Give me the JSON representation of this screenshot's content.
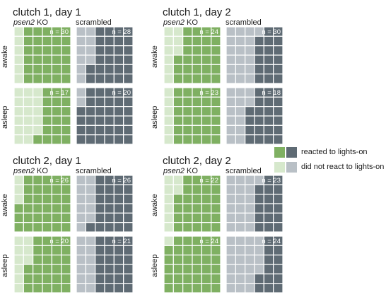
{
  "chart_data": {
    "type": "waffle",
    "colors": {
      "psen2_reacted": "#7fb062",
      "psen2_not_reacted": "#d6e8cc",
      "scrambled_reacted": "#5f6b74",
      "scrambled_not_reacted": "#b9c0c6",
      "grid_line": "#ffffff"
    },
    "grid": {
      "rows": 6,
      "cols": 6
    },
    "legend": [
      {
        "label": "reacted to lights-on",
        "colors": [
          "#7fb062",
          "#5f6b74"
        ]
      },
      {
        "label": "did not react to lights-on",
        "colors": [
          "#d6e8cc",
          "#b9c0c6"
        ]
      }
    ],
    "panels": [
      {
        "title": "clutch 1, day 1",
        "genotype_label": {
          "gene": "psen2",
          "suffix": "KO"
        },
        "control_label": "scrambled",
        "rows": [
          {
            "label": "awake",
            "psen2": {
              "n": 30,
              "n_label": "n = 30",
              "reacted": 25
            },
            "scrambled": {
              "n": 28,
              "n_label": "n = 28",
              "reacted": 20
            }
          },
          {
            "label": "asleep",
            "psen2": {
              "n": 17,
              "n_label": "n = 17",
              "reacted": 9
            },
            "scrambled": {
              "n": 20,
              "n_label": "n = 20",
              "reacted": 19
            }
          }
        ]
      },
      {
        "title": "clutch 1, day 2",
        "genotype_label": {
          "gene": "psen2",
          "suffix": "KO"
        },
        "control_label": "scrambled",
        "rows": [
          {
            "label": "awake",
            "psen2": {
              "n": 24,
              "n_label": "n = 24",
              "reacted": 18
            },
            "scrambled": {
              "n": 30,
              "n_label": "n = 30",
              "reacted": 14
            }
          },
          {
            "label": "asleep",
            "psen2": {
              "n": 23,
              "n_label": "n = 23",
              "reacted": 19
            },
            "scrambled": {
              "n": 18,
              "n_label": "n = 18",
              "reacted": 11
            }
          }
        ]
      },
      {
        "title": "clutch 2, day 1",
        "genotype_label": {
          "gene": "psen2",
          "suffix": "KO"
        },
        "control_label": "scrambled",
        "rows": [
          {
            "label": "awake",
            "psen2": {
              "n": 26,
              "n_label": "n = 26",
              "reacted": 24
            },
            "scrambled": {
              "n": 26,
              "n_label": "n = 26",
              "reacted": 18
            }
          },
          {
            "label": "asleep",
            "psen2": {
              "n": 20,
              "n_label": "n = 20",
              "reacted": 15
            },
            "scrambled": {
              "n": 21,
              "n_label": "n = 21",
              "reacted": 14
            }
          }
        ]
      },
      {
        "title": "clutch 2, day 2",
        "genotype_label": {
          "gene": "psen2",
          "suffix": "KO"
        },
        "control_label": "scrambled",
        "rows": [
          {
            "label": "awake",
            "psen2": {
              "n": 22,
              "n_label": "n = 22",
              "reacted": 17
            },
            "scrambled": {
              "n": 23,
              "n_label": "n = 23",
              "reacted": 11
            }
          },
          {
            "label": "asleep",
            "psen2": {
              "n": 24,
              "n_label": "n = 24",
              "reacted": 23
            },
            "scrambled": {
              "n": 24,
              "n_label": "n = 24",
              "reacted": 9
            }
          }
        ]
      }
    ]
  }
}
